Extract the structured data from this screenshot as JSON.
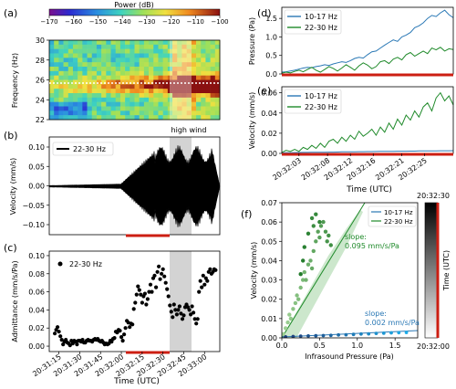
{
  "panels": {
    "a": {
      "tag": "(a)",
      "colorbar_label": "Power (dB)",
      "colorbar_ticks": [
        "−170",
        "−160",
        "−150",
        "−140",
        "−130",
        "−120",
        "−110",
        "−100"
      ],
      "ylabel": "Frequency (Hz)",
      "yticks": [
        "30",
        "28",
        "26",
        "24",
        "22"
      ]
    },
    "b": {
      "tag": "(b)",
      "ylabel": "Velocity (mm/s)",
      "legend": "22-30 Hz",
      "yticks": [
        "0.10",
        "0.05",
        "0.00",
        "−0.05",
        "−0.10"
      ],
      "shade_label": "high wind"
    },
    "c": {
      "tag": "(c)",
      "ylabel": "Admittance (mm/s/Pa)",
      "legend": "22-30 Hz",
      "yticks": [
        "0.10",
        "0.08",
        "0.06",
        "0.04",
        "0.02",
        "0.00"
      ],
      "xticks": [
        "20:31:15",
        "20:31:30",
        "20:31:45",
        "20:32:00",
        "20:32:15",
        "20:32:30",
        "20:32:45",
        "20:33:00"
      ],
      "xlabel": "Time (UTC)"
    },
    "d": {
      "tag": "(d)",
      "ylabel": "Pressure (Pa)",
      "yticks": [
        "1.5",
        "1.0",
        "0.5",
        "0.0"
      ],
      "legend": [
        "10-17 Hz",
        "22-30 Hz"
      ]
    },
    "e": {
      "tag": "(e)",
      "ylabel": "Velocity (mm/s)",
      "yticks": [
        "0.06",
        "0.04",
        "0.02",
        "0.00"
      ],
      "legend": [
        "10-17 Hz",
        "22-30 Hz"
      ],
      "xticks": [
        "20:32:03",
        "20:32:08",
        "20:32:12",
        "20:32:16",
        "20:32:21",
        "20:32:25"
      ],
      "xlabel": "Time (UTC)"
    },
    "f": {
      "tag": "(f)",
      "ylabel": "Velocity (mm/s)",
      "xlabel": "Infrasound Pressure (Pa)",
      "yticks": [
        "0.07",
        "0.06",
        "0.05",
        "0.04",
        "0.03",
        "0.02",
        "0.01",
        "0.00"
      ],
      "xticks": [
        "0.0",
        "0.5",
        "1.0",
        "1.5"
      ],
      "legend": [
        "10-17 Hz",
        "22-30 Hz"
      ],
      "slope_green": [
        "slope:",
        "0.095 mm/s/Pa"
      ],
      "slope_blue": [
        "slope:",
        "0.002 mm/s/Pa"
      ],
      "colorbar_top": "20:32:30",
      "colorbar_bottom": "20:32:00",
      "colorbar_label": "Time (UTC)"
    }
  },
  "colors": {
    "blue": "#2a78b5",
    "green": "#1f8a2a",
    "red": "#cc1e12",
    "shade": "#c8c8c8"
  },
  "chart_data": [
    {
      "panel": "a",
      "type": "heatmap",
      "x_range": [
        "20:31:05",
        "20:33:10"
      ],
      "y_range": [
        22,
        30
      ],
      "z_range": [
        -170,
        -100
      ],
      "dotted_line_hz": 25.7
    },
    {
      "panel": "b",
      "type": "line",
      "series": [
        {
          "name": "22-30 Hz"
        }
      ],
      "ylim": [
        -0.13,
        0.13
      ],
      "shade_x": [
        "20:32:28",
        "20:32:48"
      ]
    },
    {
      "panel": "c",
      "type": "scatter",
      "series": [
        {
          "name": "22-30 Hz",
          "values": [
            [
              "20:31:12",
              0.014
            ],
            [
              "20:31:13",
              0.018
            ],
            [
              "20:31:14",
              0.021
            ],
            [
              "20:31:15",
              0.016
            ],
            [
              "20:31:16",
              0.011
            ],
            [
              "20:31:17",
              0.007
            ],
            [
              "20:31:18",
              0.002
            ],
            [
              "20:31:19",
              0.005
            ],
            [
              "20:31:20",
              0.007
            ],
            [
              "20:31:21",
              0.004
            ],
            [
              "20:31:22",
              0.003
            ],
            [
              "20:31:23",
              0.001
            ],
            [
              "20:31:24",
              0.006
            ],
            [
              "20:31:25",
              0.003
            ],
            [
              "20:31:26",
              0.006
            ],
            [
              "20:31:27",
              0.005
            ],
            [
              "20:31:28",
              0.002
            ],
            [
              "20:31:29",
              0.006
            ],
            [
              "20:31:30",
              0.006
            ],
            [
              "20:31:31",
              0.005
            ],
            [
              "20:31:32",
              0.007
            ],
            [
              "20:31:33",
              0.004
            ],
            [
              "20:31:34",
              0.004
            ],
            [
              "20:31:35",
              0.006
            ],
            [
              "20:31:36",
              0.007
            ],
            [
              "20:31:37",
              0.006
            ],
            [
              "20:31:38",
              0.006
            ],
            [
              "20:31:39",
              0.005
            ],
            [
              "20:31:40",
              0.007
            ],
            [
              "20:31:41",
              0.008
            ],
            [
              "20:31:42",
              0.007
            ],
            [
              "20:31:43",
              0.008
            ],
            [
              "20:31:44",
              0.006
            ],
            [
              "20:31:45",
              0.005
            ],
            [
              "20:31:46",
              0.006
            ],
            [
              "20:31:47",
              0.004
            ],
            [
              "20:31:48",
              0.002
            ],
            [
              "20:31:49",
              0.003
            ],
            [
              "20:31:50",
              0.002
            ],
            [
              "20:31:51",
              0.003
            ],
            [
              "20:31:52",
              0.006
            ],
            [
              "20:31:53",
              0.005
            ],
            [
              "20:31:54",
              0.008
            ],
            [
              "20:31:55",
              0.009
            ],
            [
              "20:31:56",
              0.016
            ],
            [
              "20:31:57",
              0.015
            ],
            [
              "20:31:58",
              0.018
            ],
            [
              "20:31:59",
              0.017
            ],
            [
              "20:32:00",
              0.01
            ],
            [
              "20:32:01",
              0.006
            ],
            [
              "20:32:02",
              0.013
            ],
            [
              "20:32:03",
              0.02
            ],
            [
              "20:32:04",
              0.028
            ],
            [
              "20:32:05",
              0.026
            ],
            [
              "20:32:06",
              0.021
            ],
            [
              "20:32:07",
              0.025
            ],
            [
              "20:32:08",
              0.024
            ],
            [
              "20:32:09",
              0.041
            ],
            [
              "20:32:10",
              0.048
            ],
            [
              "20:32:11",
              0.057
            ],
            [
              "20:32:12",
              0.066
            ],
            [
              "20:32:13",
              0.062
            ],
            [
              "20:32:14",
              0.057
            ],
            [
              "20:32:15",
              0.048
            ],
            [
              "20:32:16",
              0.055
            ],
            [
              "20:32:17",
              0.058
            ],
            [
              "20:32:18",
              0.046
            ],
            [
              "20:32:19",
              0.052
            ],
            [
              "20:32:20",
              0.06
            ],
            [
              "20:32:21",
              0.068
            ],
            [
              "20:32:22",
              0.06
            ],
            [
              "20:32:23",
              0.075
            ],
            [
              "20:32:24",
              0.078
            ],
            [
              "20:32:25",
              0.065
            ],
            [
              "20:32:26",
              0.082
            ],
            [
              "20:32:27",
              0.088
            ],
            [
              "20:32:28",
              0.074
            ],
            [
              "20:32:29",
              0.08
            ],
            [
              "20:32:30",
              0.085
            ],
            [
              "20:32:31",
              0.077
            ],
            [
              "20:32:32",
              0.07
            ],
            [
              "20:32:33",
              0.063
            ],
            [
              "20:32:34",
              0.055
            ],
            [
              "20:32:35",
              0.045
            ],
            [
              "20:32:36",
              0.038
            ],
            [
              "20:32:37",
              0.032
            ],
            [
              "20:32:38",
              0.046
            ],
            [
              "20:32:39",
              0.04
            ],
            [
              "20:32:40",
              0.035
            ],
            [
              "20:32:41",
              0.04
            ],
            [
              "20:32:42",
              0.044
            ],
            [
              "20:32:43",
              0.036
            ],
            [
              "20:32:44",
              0.03
            ],
            [
              "20:32:45",
              0.034
            ],
            [
              "20:32:46",
              0.043
            ],
            [
              "20:32:47",
              0.046
            ],
            [
              "20:32:48",
              0.043
            ],
            [
              "20:32:49",
              0.04
            ],
            [
              "20:32:50",
              0.035
            ],
            [
              "20:32:51",
              0.044
            ],
            [
              "20:32:52",
              0.037
            ],
            [
              "20:32:53",
              0.03
            ],
            [
              "20:32:54",
              0.025
            ],
            [
              "20:32:55",
              0.03
            ],
            [
              "20:32:56",
              0.06
            ],
            [
              "20:32:57",
              0.072
            ],
            [
              "20:32:58",
              0.065
            ],
            [
              "20:32:59",
              0.078
            ],
            [
              "20:33:00",
              0.068
            ],
            [
              "20:33:01",
              0.075
            ],
            [
              "20:33:02",
              0.072
            ],
            [
              "20:33:03",
              0.082
            ],
            [
              "20:33:04",
              0.085
            ],
            [
              "20:33:05",
              0.08
            ],
            [
              "20:33:06",
              0.082
            ],
            [
              "20:33:07",
              0.085
            ],
            [
              "20:33:08",
              0.084
            ]
          ]
        }
      ],
      "ylim": [
        -0.006,
        0.105
      ],
      "xlim": [
        "20:31:08",
        "20:33:11"
      ],
      "shade_x": [
        "20:32:28",
        "20:32:48"
      ],
      "red_bar_x": [
        "20:32:00",
        "20:32:30"
      ]
    },
    {
      "panel": "d",
      "type": "line",
      "x_range": [
        "20:32:00",
        "20:32:30"
      ],
      "ylim": [
        0,
        1.8
      ],
      "series": [
        {
          "name": "10-17 Hz",
          "values": [
            0.05,
            0.06,
            0.08,
            0.1,
            0.13,
            0.16,
            0.18,
            0.17,
            0.2,
            0.22,
            0.25,
            0.23,
            0.27,
            0.3,
            0.33,
            0.31,
            0.36,
            0.42,
            0.45,
            0.43,
            0.52,
            0.6,
            0.62,
            0.7,
            0.78,
            0.85,
            0.92,
            0.88,
            1.0,
            1.05,
            1.12,
            1.25,
            1.3,
            1.38,
            1.5,
            1.58,
            1.55,
            1.65,
            1.72,
            1.6,
            1.52
          ]
        },
        {
          "name": "22-30 Hz",
          "values": [
            0.02,
            0.05,
            0.03,
            0.07,
            0.1,
            0.06,
            0.12,
            0.18,
            0.1,
            0.05,
            0.12,
            0.2,
            0.15,
            0.08,
            0.16,
            0.25,
            0.18,
            0.1,
            0.22,
            0.3,
            0.24,
            0.14,
            0.2,
            0.33,
            0.36,
            0.28,
            0.4,
            0.45,
            0.38,
            0.52,
            0.58,
            0.48,
            0.55,
            0.62,
            0.55,
            0.7,
            0.65,
            0.72,
            0.62,
            0.68,
            0.66
          ]
        }
      ]
    },
    {
      "panel": "e",
      "type": "line",
      "x_range": [
        "20:32:00",
        "20:32:30"
      ],
      "ylim": [
        0,
        0.066
      ],
      "series": [
        {
          "name": "10-17 Hz",
          "values": [
            0.0005,
            0.0006,
            0.0007,
            0.0008,
            0.0009,
            0.001,
            0.001,
            0.0011,
            0.0011,
            0.0012,
            0.0012,
            0.0013,
            0.0013,
            0.0014,
            0.0015,
            0.0015,
            0.0016,
            0.0016,
            0.0017,
            0.0017,
            0.0018,
            0.0018,
            0.0019,
            0.002,
            0.002,
            0.0021,
            0.0021,
            0.0022,
            0.0022,
            0.0022,
            0.0023,
            0.0023,
            0.0024,
            0.0024,
            0.0025,
            0.0025,
            0.0025,
            0.0026,
            0.0026,
            0.0026,
            0.0027
          ]
        },
        {
          "name": "22-30 Hz",
          "values": [
            0.001,
            0.003,
            0.002,
            0.004,
            0.002,
            0.006,
            0.004,
            0.008,
            0.005,
            0.01,
            0.006,
            0.012,
            0.014,
            0.01,
            0.016,
            0.012,
            0.018,
            0.014,
            0.022,
            0.017,
            0.02,
            0.024,
            0.018,
            0.026,
            0.021,
            0.03,
            0.024,
            0.034,
            0.028,
            0.038,
            0.033,
            0.042,
            0.036,
            0.046,
            0.05,
            0.042,
            0.055,
            0.06,
            0.052,
            0.057,
            0.048
          ]
        }
      ]
    },
    {
      "panel": "f",
      "type": "scatter",
      "xlim": [
        0,
        1.8
      ],
      "ylim": [
        0,
        0.07
      ],
      "series": [
        {
          "name": "10-17 Hz",
          "fit_slope": 0.002,
          "values": [
            [
              0.05,
              0.0005
            ],
            [
              0.15,
              0.0007
            ],
            [
              0.25,
              0.0009
            ],
            [
              0.35,
              0.001
            ],
            [
              0.45,
              0.0011
            ],
            [
              0.55,
              0.0012
            ],
            [
              0.65,
              0.0013
            ],
            [
              0.75,
              0.0015
            ],
            [
              0.85,
              0.0016
            ],
            [
              0.95,
              0.0018
            ],
            [
              1.05,
              0.002
            ],
            [
              1.15,
              0.0021
            ],
            [
              1.25,
              0.0023
            ],
            [
              1.35,
              0.0024
            ],
            [
              1.45,
              0.0026
            ],
            [
              1.55,
              0.0027
            ],
            [
              1.65,
              0.0028
            ]
          ]
        },
        {
          "name": "22-30 Hz",
          "fit_slope": 0.095,
          "values": [
            [
              0.02,
              0.002
            ],
            [
              0.05,
              0.005
            ],
            [
              0.08,
              0.008
            ],
            [
              0.1,
              0.012
            ],
            [
              0.12,
              0.01
            ],
            [
              0.15,
              0.015
            ],
            [
              0.18,
              0.018
            ],
            [
              0.2,
              0.022
            ],
            [
              0.22,
              0.02
            ],
            [
              0.25,
              0.026
            ],
            [
              0.28,
              0.03
            ],
            [
              0.3,
              0.034
            ],
            [
              0.32,
              0.03
            ],
            [
              0.35,
              0.038
            ],
            [
              0.38,
              0.04
            ],
            [
              0.4,
              0.036
            ],
            [
              0.42,
              0.045
            ],
            [
              0.45,
              0.05
            ],
            [
              0.48,
              0.055
            ],
            [
              0.5,
              0.052
            ],
            [
              0.52,
              0.058
            ],
            [
              0.55,
              0.06
            ],
            [
              0.58,
              0.055
            ],
            [
              0.6,
              0.05
            ],
            [
              0.62,
              0.053
            ],
            [
              0.65,
              0.048
            ],
            [
              0.42,
              0.058
            ],
            [
              0.4,
              0.062
            ],
            [
              0.45,
              0.064
            ],
            [
              0.5,
              0.06
            ],
            [
              0.35,
              0.054
            ],
            [
              0.3,
              0.047
            ],
            [
              0.28,
              0.04
            ],
            [
              0.25,
              0.033
            ]
          ]
        }
      ]
    }
  ]
}
